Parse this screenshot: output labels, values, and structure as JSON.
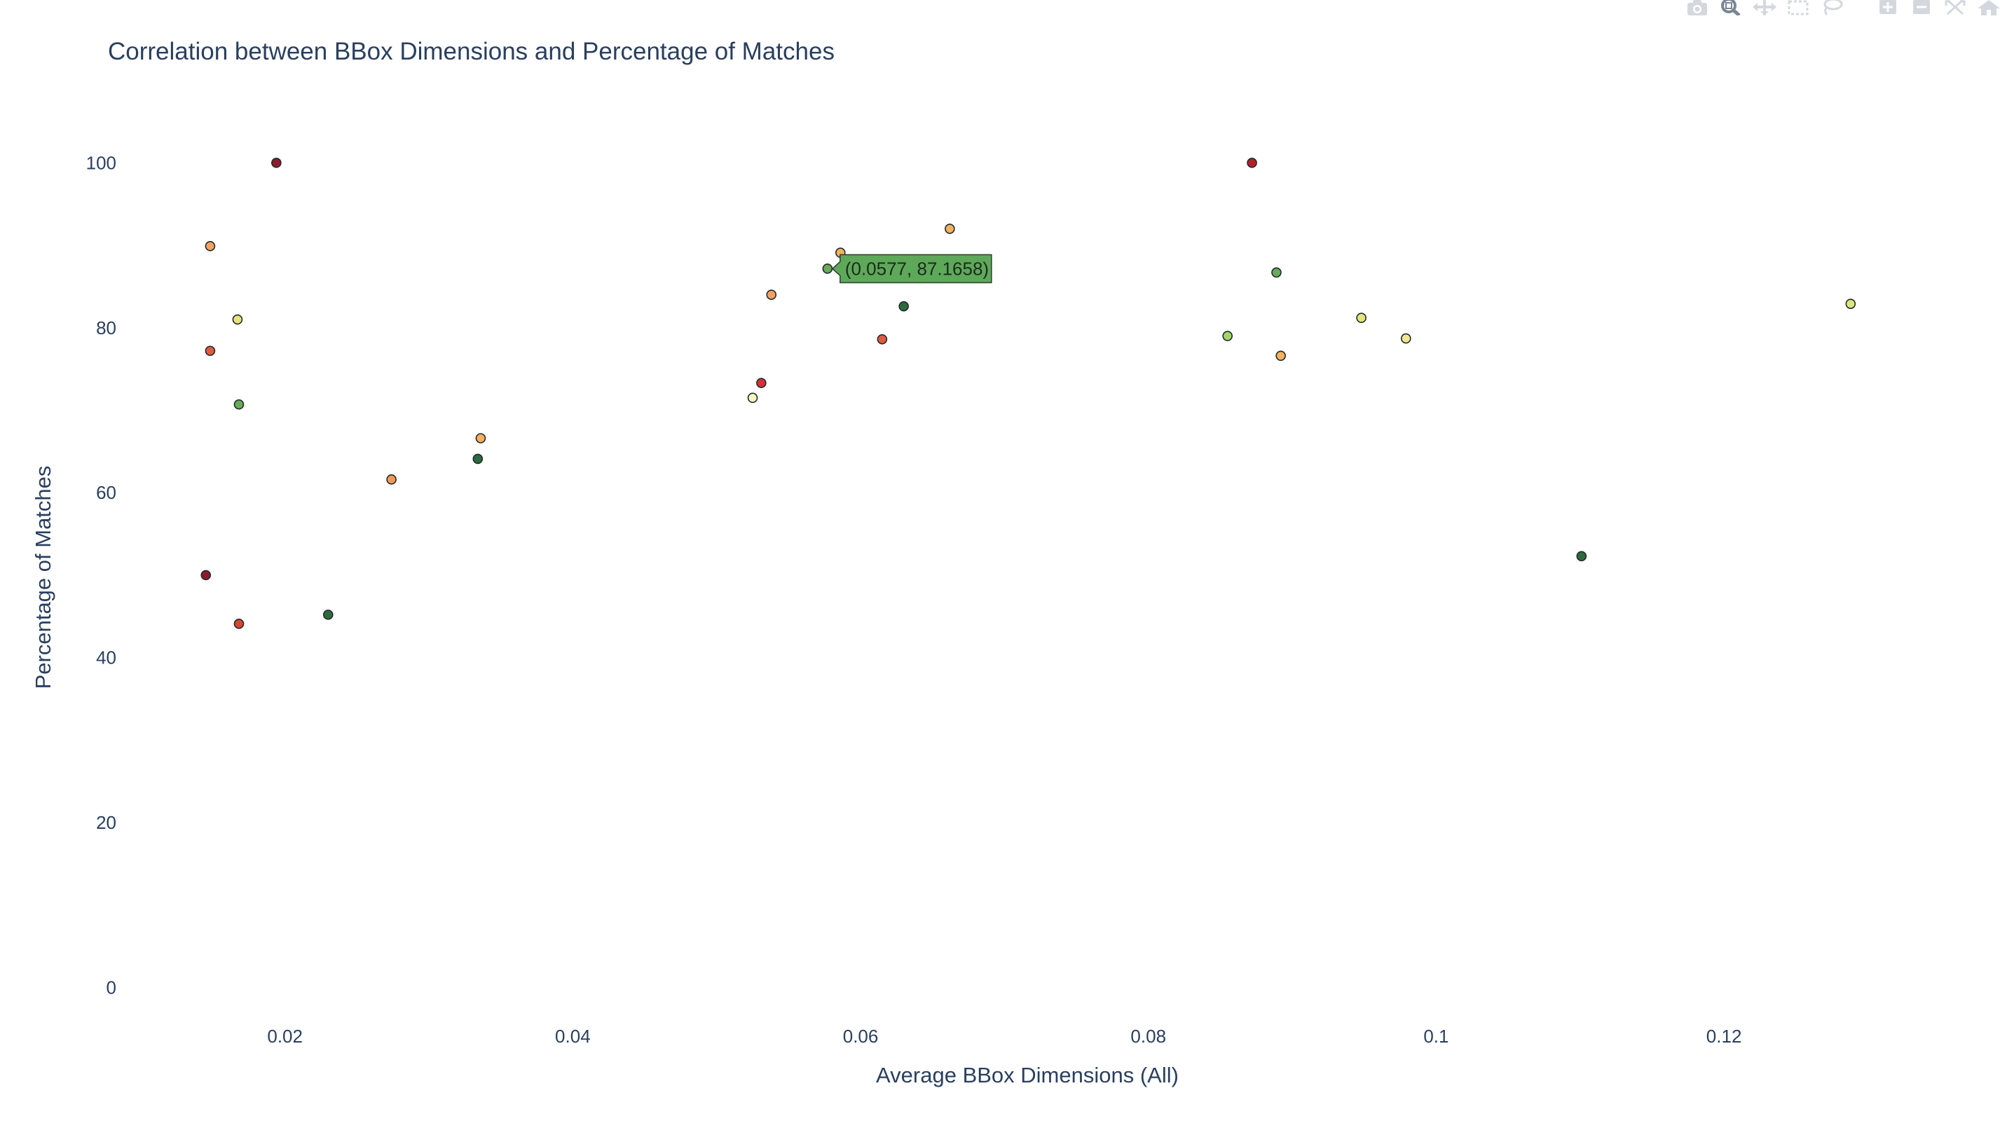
{
  "chart_data": {
    "type": "scatter",
    "title": "Correlation between BBox Dimensions and Percentage of Matches",
    "xlabel": "Average BBox Dimensions (All)",
    "ylabel": "Percentage of Matches",
    "xlim": [
      0.0075,
      0.1385
    ],
    "ylim": [
      -6,
      107
    ],
    "xticks": [
      0.02,
      0.04,
      0.06,
      0.08,
      0.1,
      0.12
    ],
    "xtick_labels": [
      "0.02",
      "0.04",
      "0.06",
      "0.08",
      "0.1",
      "0.12"
    ],
    "yticks": [
      0,
      20,
      40,
      60,
      80,
      100
    ],
    "ytick_labels": [
      "0",
      "20",
      "40",
      "60",
      "80",
      "100"
    ],
    "grid": false,
    "points": [
      {
        "x": 0.0194,
        "y": 100.0,
        "color": "#8e1b2c"
      },
      {
        "x": 0.0148,
        "y": 89.9,
        "color": "#f4a262"
      },
      {
        "x": 0.0167,
        "y": 81.0,
        "color": "#e6e47a"
      },
      {
        "x": 0.0148,
        "y": 77.2,
        "color": "#e05a40"
      },
      {
        "x": 0.0168,
        "y": 70.7,
        "color": "#6aaa5a"
      },
      {
        "x": 0.0145,
        "y": 50.0,
        "color": "#8e1b2c"
      },
      {
        "x": 0.0168,
        "y": 44.1,
        "color": "#d9452f"
      },
      {
        "x": 0.023,
        "y": 45.2,
        "color": "#2e6a3e"
      },
      {
        "x": 0.0274,
        "y": 61.6,
        "color": "#f19a58"
      },
      {
        "x": 0.0336,
        "y": 66.6,
        "color": "#f5b060"
      },
      {
        "x": 0.0334,
        "y": 64.1,
        "color": "#2e6a3e"
      },
      {
        "x": 0.0525,
        "y": 71.5,
        "color": "#f7f5c2"
      },
      {
        "x": 0.0531,
        "y": 73.3,
        "color": "#d7303a"
      },
      {
        "x": 0.0538,
        "y": 84.0,
        "color": "#f4a262"
      },
      {
        "x": 0.0586,
        "y": 89.1,
        "color": "#f5b060"
      },
      {
        "x": 0.0577,
        "y": 87.1658,
        "color": "#6aaa5a"
      },
      {
        "x": 0.063,
        "y": 82.6,
        "color": "#2e6a3e"
      },
      {
        "x": 0.0615,
        "y": 78.6,
        "color": "#e05a40"
      },
      {
        "x": 0.0662,
        "y": 92.0,
        "color": "#f5b060"
      },
      {
        "x": 0.0872,
        "y": 100.0,
        "color": "#b3202c"
      },
      {
        "x": 0.0889,
        "y": 86.7,
        "color": "#6aaa5a"
      },
      {
        "x": 0.0855,
        "y": 79.0,
        "color": "#a2d66a"
      },
      {
        "x": 0.0892,
        "y": 76.6,
        "color": "#f5b060"
      },
      {
        "x": 0.0948,
        "y": 81.2,
        "color": "#e6e47a"
      },
      {
        "x": 0.0979,
        "y": 78.7,
        "color": "#f0e890"
      },
      {
        "x": 0.1101,
        "y": 52.3,
        "color": "#2e6a3e"
      },
      {
        "x": 0.1288,
        "y": 82.9,
        "color": "#dfe57a"
      }
    ],
    "hover": {
      "x": 0.0577,
      "y": 87.1658,
      "label": "(0.0577, 87.1658)",
      "color": "#5ea85a"
    }
  },
  "modebar": {
    "buttons": [
      "camera-icon",
      "zoom-icon",
      "pan-icon",
      "box-select-icon",
      "lasso-icon",
      "zoom-in-icon",
      "zoom-out-icon",
      "autoscale-icon",
      "reset-axes-icon"
    ]
  }
}
